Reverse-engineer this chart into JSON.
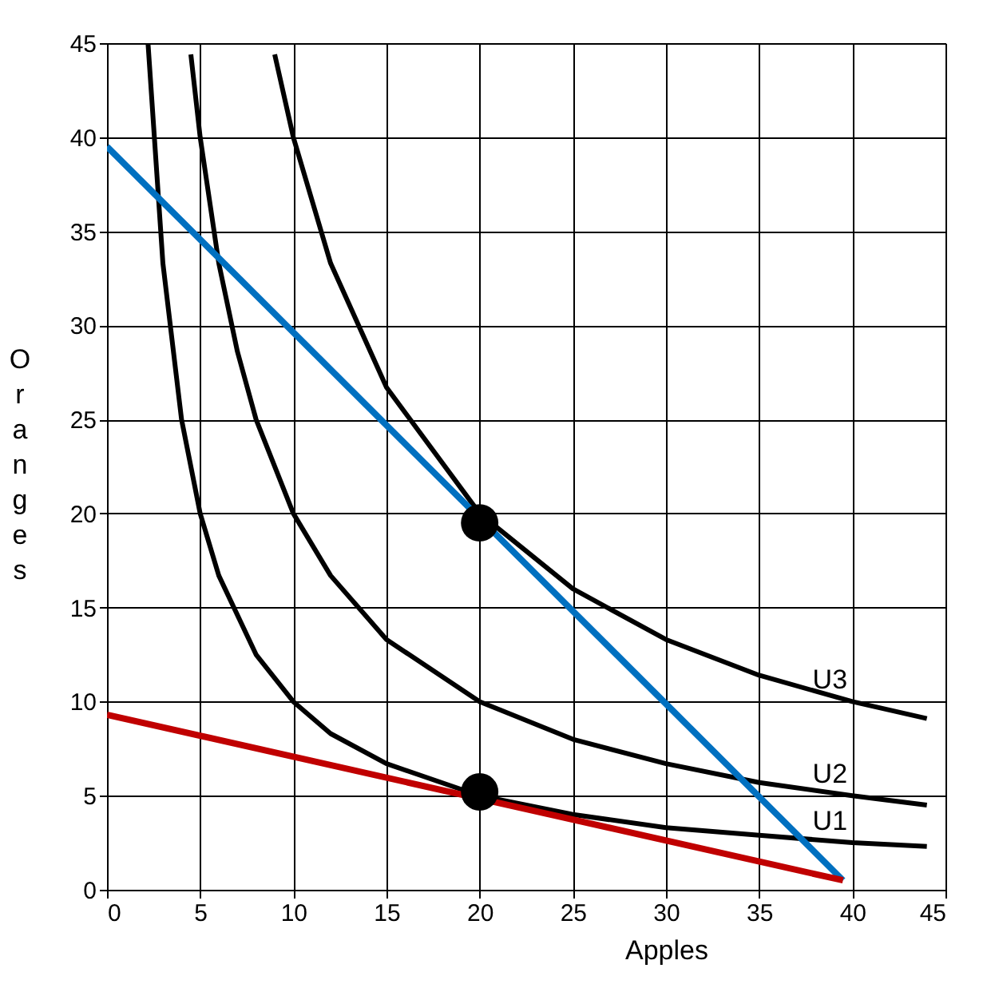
{
  "chart_data": {
    "type": "line",
    "xlabel": "Apples",
    "ylabel": "Oranges",
    "xlim": [
      0,
      45
    ],
    "ylim": [
      0,
      45
    ],
    "xticks": [
      0,
      5,
      10,
      15,
      20,
      25,
      30,
      35,
      40,
      45
    ],
    "yticks": [
      0,
      5,
      10,
      15,
      20,
      25,
      30,
      35,
      40,
      45
    ],
    "grid": true,
    "marker": "none",
    "line_style": "solid",
    "series": [
      {
        "name": "U1",
        "color": "#000000",
        "x": [
          2.2,
          3,
          4,
          5,
          6,
          8,
          10,
          12,
          15,
          20,
          25,
          30,
          35,
          40,
          44
        ],
        "values": [
          45,
          33.3,
          25,
          20,
          16.7,
          12.5,
          10,
          8.3,
          6.7,
          5,
          4,
          3.3,
          2.9,
          2.5,
          2.3
        ]
      },
      {
        "name": "U2",
        "color": "#000000",
        "x": [
          4.5,
          5,
          6,
          7,
          8,
          10,
          12,
          15,
          20,
          25,
          30,
          35,
          40,
          44
        ],
        "values": [
          44.4,
          40,
          33.3,
          28.6,
          25,
          20,
          16.7,
          13.3,
          10,
          8,
          6.7,
          5.7,
          5,
          4.5
        ]
      },
      {
        "name": "U3",
        "color": "#000000",
        "x": [
          9,
          10,
          12,
          15,
          20,
          25,
          30,
          35,
          40,
          44
        ],
        "values": [
          44.4,
          40,
          33.3,
          26.7,
          20,
          16,
          13.3,
          11.4,
          10,
          9.1
        ]
      },
      {
        "color": "#0070c0",
        "x": [
          0,
          39.5
        ],
        "values": [
          39.5,
          0.5
        ]
      },
      {
        "color": "#c00000",
        "x": [
          0,
          39.5
        ],
        "values": [
          9.3,
          0.5
        ]
      },
      {
        "type": "scatter",
        "marker": "circle",
        "color": "#000000",
        "x": [
          20,
          20
        ],
        "values": [
          19.5,
          5.2
        ]
      }
    ]
  }
}
